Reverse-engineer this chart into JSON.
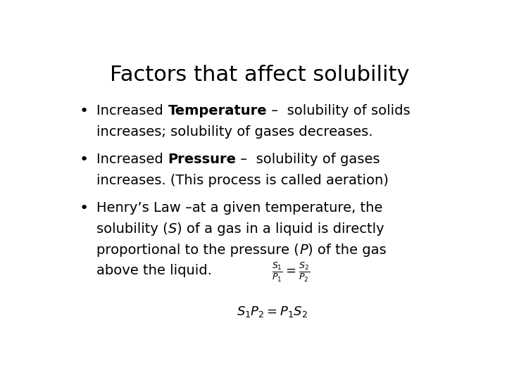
{
  "title": "Factors that affect solubility",
  "background_color": "#ffffff",
  "title_fontsize": 22,
  "text_color": "#000000",
  "bullet_fontsize": 14,
  "formula1": "$\\frac{S_1}{P_1} = \\frac{S_2}{P_2}$",
  "formula1_fontsize": 13,
  "formula2": "$S_1P_2 = P_1S_2$",
  "formula2_fontsize": 13
}
